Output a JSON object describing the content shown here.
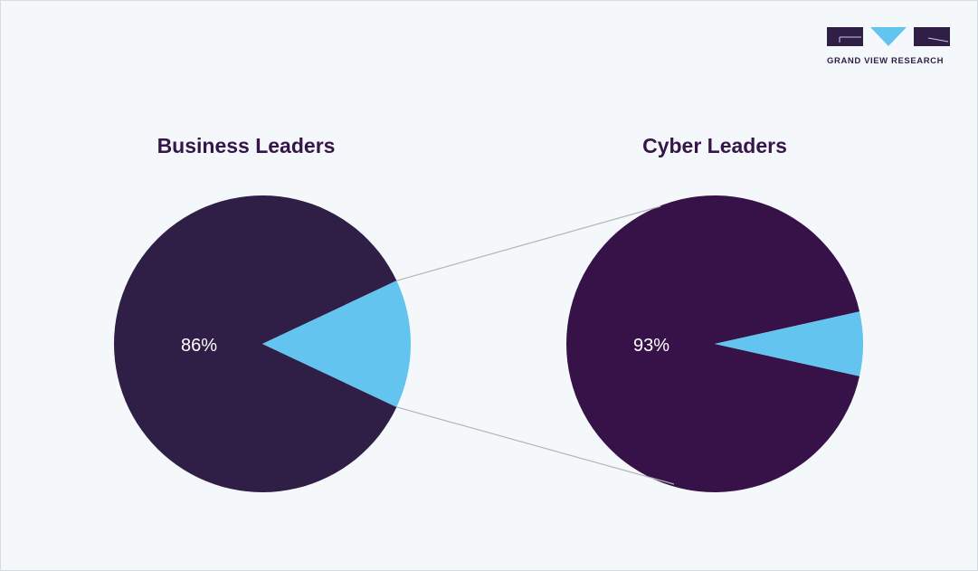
{
  "logo": {
    "text": "GRAND VIEW RESEARCH"
  },
  "colors": {
    "business_dark": "#2f1f47",
    "cyber_dark": "#371249",
    "highlight": "#63c5ef",
    "connector": "#b5b5b5",
    "title": "#36154a"
  },
  "chart_data": [
    {
      "type": "pie",
      "title": "Business Leaders",
      "slices": [
        {
          "value": 86,
          "label": "86%",
          "color": "#2f1f47"
        },
        {
          "value": 14,
          "label": "",
          "color": "#63c5ef"
        }
      ]
    },
    {
      "type": "pie",
      "title": "Cyber Leaders",
      "slices": [
        {
          "value": 93,
          "label": "93%",
          "color": "#371249"
        },
        {
          "value": 7,
          "label": "",
          "color": "#63c5ef"
        }
      ]
    }
  ]
}
